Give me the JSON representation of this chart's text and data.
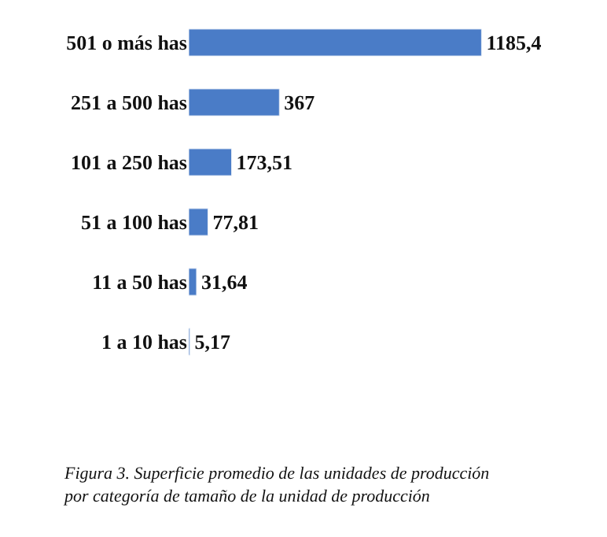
{
  "chart_data": {
    "type": "bar",
    "orientation": "horizontal",
    "categories": [
      "501 o más has",
      "251 a 500 has",
      "101 a 250 has",
      "51 a 100 has",
      "11 a 50 has",
      "1 a 10 has"
    ],
    "values": [
      1185.4,
      367,
      173.51,
      77.81,
      31.64,
      5.17
    ],
    "value_labels": [
      "1185,4",
      "367",
      "173,51",
      "77,81",
      "31,64",
      "5,17"
    ],
    "color": "#4a7cc7",
    "legend": false,
    "annotations": [
      "Figura 3. Superficie promedio de las unidades de producción por categoría de tamaño de la unidad de producción"
    ]
  }
}
